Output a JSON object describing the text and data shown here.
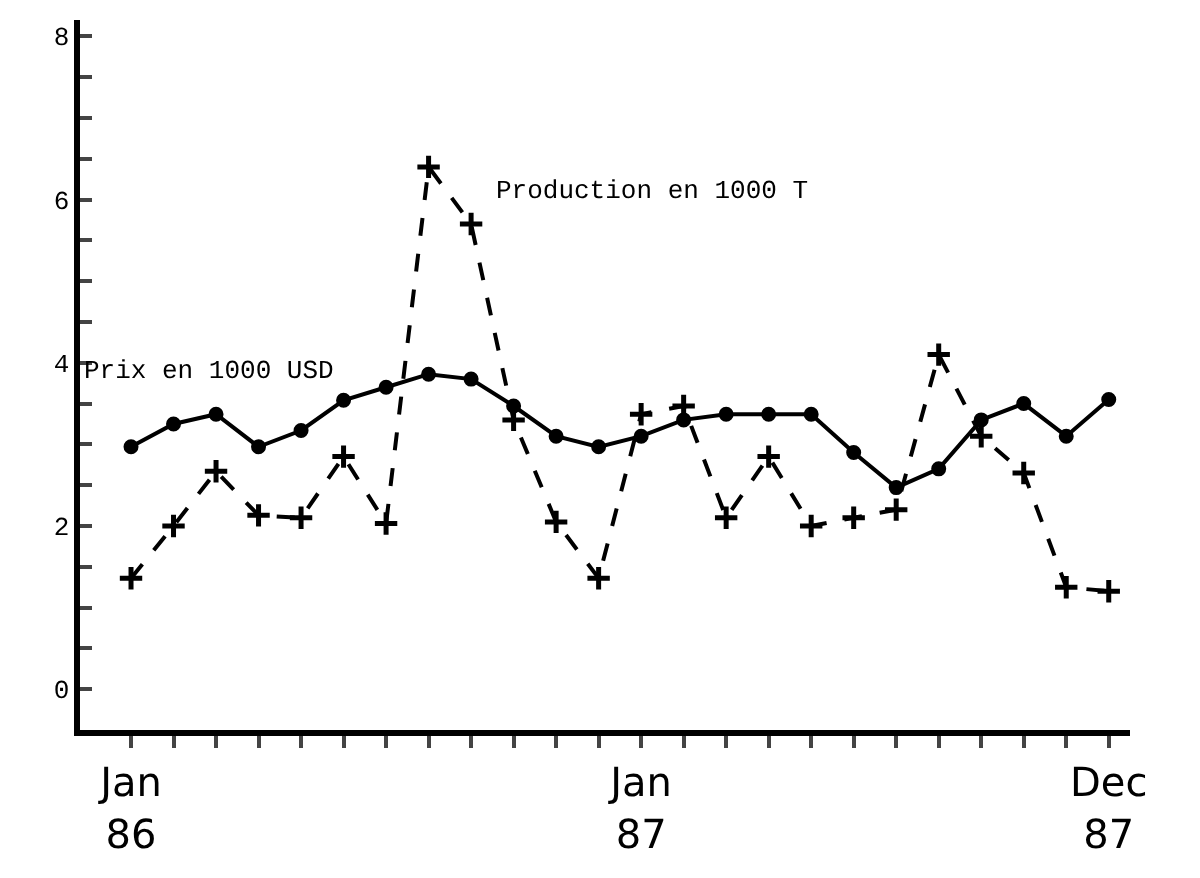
{
  "chart_data": {
    "type": "line",
    "categories": [
      "Jan\n86",
      null,
      null,
      null,
      null,
      null,
      null,
      null,
      null,
      null,
      null,
      null,
      "Jan\n87",
      null,
      null,
      null,
      null,
      null,
      null,
      null,
      null,
      null,
      null,
      "Dec\n87"
    ],
    "series": [
      {
        "name": "Prix en 1000 USD",
        "color": "#000000",
        "line_style": "solid",
        "marker": "circle",
        "values": [
          2.97,
          3.25,
          3.37,
          2.97,
          3.17,
          3.54,
          3.7,
          3.86,
          3.8,
          3.47,
          3.1,
          2.97,
          3.1,
          3.3,
          3.37,
          3.37,
          3.37,
          2.9,
          2.47,
          2.7,
          3.3,
          3.5,
          3.1,
          3.55
        ]
      },
      {
        "name": "Production en 1000 T",
        "color": "#000000",
        "line_style": "dashed",
        "marker": "cross",
        "values": [
          1.36,
          2.0,
          2.67,
          2.13,
          2.1,
          2.85,
          2.03,
          6.4,
          5.7,
          3.3,
          2.05,
          1.36,
          3.37,
          3.47,
          2.1,
          2.85,
          2.0,
          2.1,
          2.2,
          4.1,
          3.1,
          2.65,
          1.25,
          1.2
        ]
      }
    ],
    "ylim": [
      -0.5,
      8.2
    ],
    "yticks": [
      0,
      {
        "value": 0.5,
        "label": null
      },
      {
        "value": 1,
        "label": null
      },
      {
        "value": 1.5,
        "label": null
      },
      2,
      {
        "value": 2.5,
        "label": null
      },
      {
        "value": 3,
        "label": null
      },
      {
        "value": 3.5,
        "label": null
      },
      4,
      {
        "value": 4.5,
        "label": null
      },
      {
        "value": 5,
        "label": null
      },
      {
        "value": 5.5,
        "label": null
      },
      6,
      {
        "value": 6.5,
        "label": null
      },
      {
        "value": 7,
        "label": null
      },
      {
        "value": 7.5,
        "label": null
      },
      8
    ],
    "legend": false
  }
}
